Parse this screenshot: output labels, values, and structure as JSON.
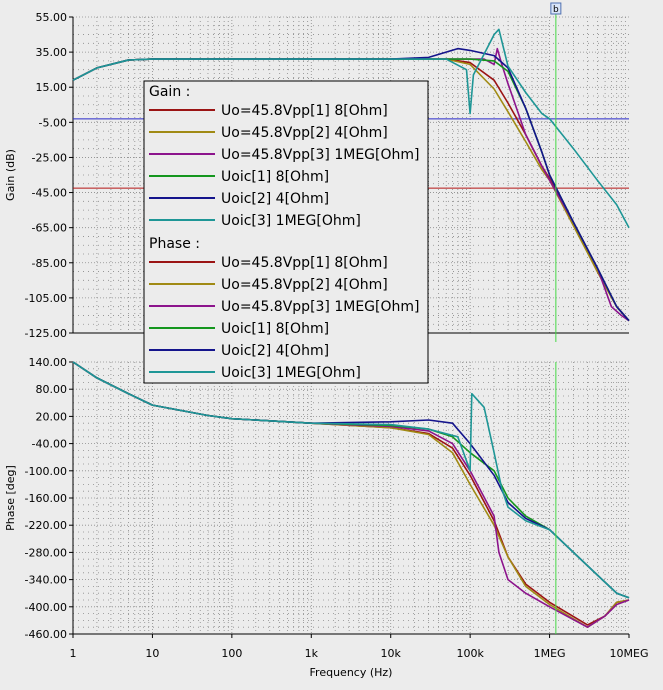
{
  "window": {
    "background": "#ececec"
  },
  "xaxis": {
    "label": "Frequency (Hz)",
    "scale": "log",
    "range": [
      1,
      10000000
    ],
    "ticks": [
      "1",
      "10",
      "100",
      "1k",
      "10k",
      "100k",
      "1MEG",
      "10MEG"
    ]
  },
  "cursor": {
    "label": "b",
    "x": 1200000,
    "color": "#46d846"
  },
  "colors": {
    "s1": "#9b1414",
    "s2": "#a08a14",
    "s3": "#8c148c",
    "s4": "#14961e",
    "s5": "#14148c",
    "s6": "#1e9696",
    "hline_gain_a": "#2828c8",
    "hline_gain_b": "#b41414"
  },
  "legend": {
    "gain_heading": "Gain :",
    "phase_heading": "Phase :",
    "gain_items": [
      "Uo=45.8Vpp[1]  8[Ohm]",
      "Uo=45.8Vpp[2]  4[Ohm]",
      "Uo=45.8Vpp[3]  1MEG[Ohm]",
      "Uoic[1]  8[Ohm]",
      "Uoic[2]  4[Ohm]",
      "Uoic[3]  1MEG[Ohm]"
    ],
    "phase_items": [
      "Uo=45.8Vpp[1]  8[Ohm]",
      "Uo=45.8Vpp[2]  4[Ohm]",
      "Uo=45.8Vpp[3]  1MEG[Ohm]",
      "Uoic[1]  8[Ohm]",
      "Uoic[2]  4[Ohm]",
      "Uoic[3]  1MEG[Ohm]"
    ]
  },
  "chart_data": [
    {
      "type": "line",
      "ylabel": "Gain (dB)",
      "ylim": [
        -125,
        55
      ],
      "yticks": [
        "55.00",
        "35.00",
        "15.00",
        "-5.00",
        "-25.00",
        "-45.00",
        "-65.00",
        "-85.00",
        "-105.00",
        "-125.00"
      ],
      "grid": true,
      "reference_lines": [
        {
          "y": -3,
          "color_key": "hline_gain_a"
        },
        {
          "y": -42.5,
          "color_key": "hline_gain_b"
        }
      ],
      "series": [
        {
          "key": "s1",
          "color_key": "s1",
          "points": [
            [
              1,
              19
            ],
            [
              2,
              26
            ],
            [
              5,
              30.5
            ],
            [
              10,
              31
            ],
            [
              100,
              31
            ],
            [
              10000,
              31
            ],
            [
              50000,
              31
            ],
            [
              100000,
              29
            ],
            [
              200000,
              19
            ],
            [
              300000,
              6
            ],
            [
              500000,
              -12
            ],
            [
              800000,
              -30
            ],
            [
              1000000,
              -37
            ],
            [
              2000000,
              -63
            ],
            [
              4000000,
              -90
            ],
            [
              7000000,
              -110
            ],
            [
              10000000,
              -118
            ]
          ]
        },
        {
          "key": "s2",
          "color_key": "s2",
          "points": [
            [
              1,
              19
            ],
            [
              2,
              26
            ],
            [
              5,
              30.5
            ],
            [
              10,
              31
            ],
            [
              100,
              31
            ],
            [
              10000,
              31
            ],
            [
              50000,
              31
            ],
            [
              100000,
              28
            ],
            [
              200000,
              14
            ],
            [
              300000,
              1
            ],
            [
              500000,
              -16
            ],
            [
              800000,
              -32
            ],
            [
              1000000,
              -38
            ],
            [
              2000000,
              -64
            ],
            [
              4000000,
              -90
            ],
            [
              7000000,
              -110
            ],
            [
              10000000,
              -118
            ]
          ]
        },
        {
          "key": "s3",
          "color_key": "s3",
          "points": [
            [
              1,
              19
            ],
            [
              2,
              26
            ],
            [
              5,
              30.5
            ],
            [
              10,
              31
            ],
            [
              100,
              31
            ],
            [
              10000,
              31
            ],
            [
              50000,
              31
            ],
            [
              150000,
              31
            ],
            [
              200000,
              28
            ],
            [
              220000,
              37
            ],
            [
              250000,
              28
            ],
            [
              300000,
              17
            ],
            [
              500000,
              -12
            ],
            [
              800000,
              -30
            ],
            [
              1000000,
              -38
            ],
            [
              2000000,
              -62
            ],
            [
              4000000,
              -88
            ],
            [
              6000000,
              -110
            ],
            [
              8000000,
              -115
            ],
            [
              10000000,
              -118
            ]
          ]
        },
        {
          "key": "s4",
          "color_key": "s4",
          "points": [
            [
              1,
              19
            ],
            [
              2,
              26
            ],
            [
              5,
              30.5
            ],
            [
              10,
              31
            ],
            [
              100,
              31
            ],
            [
              10000,
              31
            ],
            [
              50000,
              31
            ],
            [
              100000,
              31
            ],
            [
              200000,
              30
            ],
            [
              300000,
              24
            ],
            [
              500000,
              3
            ],
            [
              800000,
              -22
            ],
            [
              1000000,
              -35
            ],
            [
              2000000,
              -62
            ],
            [
              4000000,
              -88
            ],
            [
              7000000,
              -110
            ],
            [
              10000000,
              -118
            ]
          ]
        },
        {
          "key": "s5",
          "color_key": "s5",
          "points": [
            [
              1,
              19
            ],
            [
              2,
              26
            ],
            [
              5,
              30.5
            ],
            [
              10,
              31
            ],
            [
              100,
              31
            ],
            [
              10000,
              31
            ],
            [
              30000,
              32
            ],
            [
              70000,
              37
            ],
            [
              100000,
              36
            ],
            [
              200000,
              33
            ],
            [
              300000,
              26
            ],
            [
              500000,
              3
            ],
            [
              800000,
              -22
            ],
            [
              1000000,
              -35
            ],
            [
              2000000,
              -62
            ],
            [
              4000000,
              -88
            ],
            [
              7000000,
              -110
            ],
            [
              10000000,
              -118
            ]
          ]
        },
        {
          "key": "s6",
          "color_key": "s6",
          "points": [
            [
              1,
              19
            ],
            [
              2,
              26
            ],
            [
              5,
              30.5
            ],
            [
              10,
              31
            ],
            [
              100,
              31
            ],
            [
              10000,
              31
            ],
            [
              50000,
              31
            ],
            [
              90000,
              25
            ],
            [
              100000,
              0
            ],
            [
              110000,
              22
            ],
            [
              200000,
              45
            ],
            [
              230000,
              48
            ],
            [
              300000,
              27
            ],
            [
              500000,
              12
            ],
            [
              800000,
              0
            ],
            [
              1000000,
              -3
            ],
            [
              2000000,
              -20
            ],
            [
              4000000,
              -38
            ],
            [
              7000000,
              -52
            ],
            [
              10000000,
              -65
            ]
          ]
        }
      ]
    },
    {
      "type": "line",
      "ylabel": "Phase [deg]",
      "ylim": [
        -460,
        140
      ],
      "yticks": [
        "140.00",
        "80.00",
        "20.00",
        "-40.00",
        "-100.00",
        "-160.00",
        "-220.00",
        "-280.00",
        "-340.00",
        "-400.00",
        "-460.00"
      ],
      "grid": true,
      "series": [
        {
          "key": "s1",
          "color_key": "s1",
          "points": [
            [
              1,
              140
            ],
            [
              2,
              105
            ],
            [
              5,
              70
            ],
            [
              10,
              45
            ],
            [
              50,
              22
            ],
            [
              100,
              15
            ],
            [
              1000,
              5
            ],
            [
              10000,
              -5
            ],
            [
              30000,
              -18
            ],
            [
              60000,
              -50
            ],
            [
              100000,
              -110
            ],
            [
              200000,
              -210
            ],
            [
              300000,
              -290
            ],
            [
              500000,
              -350
            ],
            [
              1000000,
              -390
            ],
            [
              3000000,
              -440
            ],
            [
              5000000,
              -420
            ],
            [
              7000000,
              -390
            ],
            [
              10000000,
              -385
            ]
          ]
        },
        {
          "key": "s2",
          "color_key": "s2",
          "points": [
            [
              1,
              140
            ],
            [
              2,
              105
            ],
            [
              5,
              70
            ],
            [
              10,
              45
            ],
            [
              50,
              22
            ],
            [
              100,
              15
            ],
            [
              1000,
              5
            ],
            [
              10000,
              -5
            ],
            [
              30000,
              -20
            ],
            [
              60000,
              -60
            ],
            [
              100000,
              -130
            ],
            [
              200000,
              -220
            ],
            [
              300000,
              -290
            ],
            [
              500000,
              -355
            ],
            [
              1000000,
              -395
            ],
            [
              3000000,
              -445
            ],
            [
              5000000,
              -420
            ],
            [
              7000000,
              -390
            ],
            [
              10000000,
              -385
            ]
          ]
        },
        {
          "key": "s3",
          "color_key": "s3",
          "points": [
            [
              1,
              140
            ],
            [
              2,
              105
            ],
            [
              5,
              70
            ],
            [
              10,
              45
            ],
            [
              50,
              22
            ],
            [
              100,
              15
            ],
            [
              1000,
              5
            ],
            [
              10000,
              -2
            ],
            [
              30000,
              -12
            ],
            [
              60000,
              -40
            ],
            [
              100000,
              -100
            ],
            [
              200000,
              -200
            ],
            [
              230000,
              -280
            ],
            [
              300000,
              -340
            ],
            [
              500000,
              -370
            ],
            [
              1000000,
              -400
            ],
            [
              3000000,
              -445
            ],
            [
              5000000,
              -420
            ],
            [
              7000000,
              -395
            ],
            [
              10000000,
              -385
            ]
          ]
        },
        {
          "key": "s4",
          "color_key": "s4",
          "points": [
            [
              1,
              140
            ],
            [
              2,
              105
            ],
            [
              5,
              70
            ],
            [
              10,
              45
            ],
            [
              50,
              22
            ],
            [
              100,
              15
            ],
            [
              1000,
              5
            ],
            [
              10000,
              0
            ],
            [
              30000,
              -8
            ],
            [
              60000,
              -25
            ],
            [
              100000,
              -60
            ],
            [
              200000,
              -100
            ],
            [
              300000,
              -160
            ],
            [
              500000,
              -200
            ],
            [
              1000000,
              -230
            ],
            [
              2000000,
              -280
            ],
            [
              4000000,
              -330
            ],
            [
              7000000,
              -370
            ],
            [
              10000000,
              -380
            ]
          ]
        },
        {
          "key": "s5",
          "color_key": "s5",
          "points": [
            [
              1,
              140
            ],
            [
              2,
              105
            ],
            [
              5,
              70
            ],
            [
              10,
              45
            ],
            [
              50,
              22
            ],
            [
              100,
              15
            ],
            [
              1000,
              5
            ],
            [
              10000,
              8
            ],
            [
              30000,
              12
            ],
            [
              60000,
              5
            ],
            [
              100000,
              -40
            ],
            [
              200000,
              -110
            ],
            [
              300000,
              -170
            ],
            [
              500000,
              -205
            ],
            [
              1000000,
              -230
            ],
            [
              2000000,
              -280
            ],
            [
              4000000,
              -330
            ],
            [
              7000000,
              -370
            ],
            [
              10000000,
              -380
            ]
          ]
        },
        {
          "key": "s6",
          "color_key": "s6",
          "points": [
            [
              1,
              140
            ],
            [
              2,
              105
            ],
            [
              5,
              70
            ],
            [
              10,
              45
            ],
            [
              50,
              22
            ],
            [
              100,
              15
            ],
            [
              1000,
              5
            ],
            [
              10000,
              2
            ],
            [
              30000,
              -8
            ],
            [
              70000,
              -25
            ],
            [
              100000,
              -100
            ],
            [
              105000,
              70
            ],
            [
              150000,
              40
            ],
            [
              200000,
              -60
            ],
            [
              250000,
              -140
            ],
            [
              300000,
              -180
            ],
            [
              500000,
              -210
            ],
            [
              1000000,
              -230
            ],
            [
              2000000,
              -280
            ],
            [
              4000000,
              -330
            ],
            [
              7000000,
              -370
            ],
            [
              10000000,
              -380
            ]
          ]
        }
      ]
    }
  ]
}
